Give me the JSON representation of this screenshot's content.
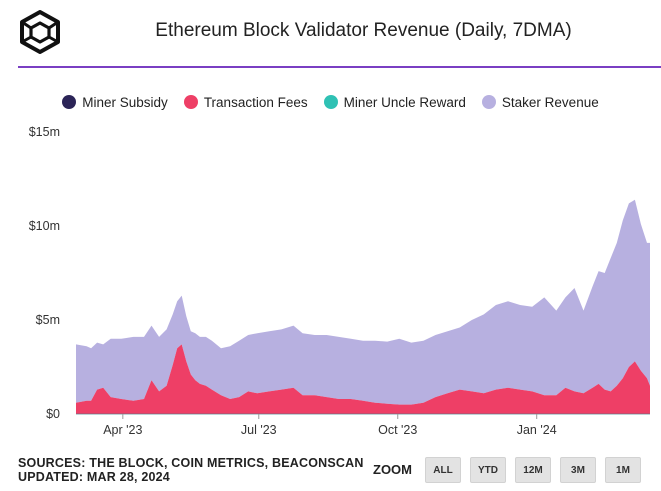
{
  "header": {
    "title": "Ethereum Block Validator Revenue (Daily, 7DMA)",
    "logo_icon": "cube-logo-icon"
  },
  "footer": {
    "sources": "SOURCES: THE BLOCK, COIN METRICS, BEACONSCAN",
    "updated": "UPDATED: MAR 28, 2024",
    "zoom_label": "ZOOM",
    "zoom_buttons": [
      "ALL",
      "YTD",
      "12M",
      "3M",
      "1M"
    ]
  },
  "colors": {
    "accent_rule": "#7a3fc3",
    "miner_subsidy": "#2b2457",
    "transaction_fees": "#ee3f66",
    "miner_uncle_reward": "#2fc1b4",
    "staker_revenue": "#b7b0e0"
  },
  "chart_data": {
    "type": "area",
    "stacked": true,
    "title": "Ethereum Block Validator Revenue (Daily, 7DMA)",
    "xlabel": "",
    "ylabel": "",
    "ylim": [
      0,
      15
    ],
    "y_ticks": [
      0,
      5,
      10,
      15
    ],
    "y_tick_labels": [
      "$0",
      "$5m",
      "$10m",
      "$15m"
    ],
    "x_range": [
      0,
      380
    ],
    "x_ticks": [
      {
        "label": "Apr '23",
        "day": 31
      },
      {
        "label": "Jul '23",
        "day": 121
      },
      {
        "label": "Oct '23",
        "day": 213
      },
      {
        "label": "Jan '24",
        "day": 305
      }
    ],
    "grid": false,
    "legend_position": "top",
    "series": [
      {
        "name": "Miner Subsidy",
        "color": "#2b2457",
        "x": [
          0,
          380
        ],
        "values": [
          0,
          0
        ]
      },
      {
        "name": "Miner Uncle Reward",
        "color": "#2fc1b4",
        "x": [
          0,
          380
        ],
        "values": [
          0,
          0
        ]
      },
      {
        "name": "Transaction Fees",
        "color": "#ee3f66",
        "x": [
          0,
          7,
          10,
          14,
          18,
          23,
          30,
          38,
          45,
          50,
          55,
          60,
          64,
          67,
          70,
          73,
          76,
          79,
          82,
          86,
          90,
          96,
          102,
          108,
          114,
          120,
          128,
          136,
          144,
          150,
          158,
          166,
          174,
          182,
          190,
          198,
          206,
          214,
          222,
          230,
          238,
          246,
          254,
          262,
          270,
          278,
          286,
          294,
          302,
          310,
          318,
          324,
          330,
          336,
          342,
          346,
          350,
          354,
          358,
          362,
          366,
          370,
          374,
          378,
          380
        ],
        "values": [
          0.6,
          0.7,
          0.7,
          1.3,
          1.4,
          0.9,
          0.8,
          0.7,
          0.8,
          1.8,
          1.2,
          1.5,
          2.6,
          3.5,
          3.7,
          2.8,
          2.1,
          1.8,
          1.6,
          1.5,
          1.3,
          1.0,
          0.8,
          0.9,
          1.2,
          1.1,
          1.2,
          1.3,
          1.4,
          1.0,
          1.0,
          0.9,
          0.8,
          0.8,
          0.7,
          0.6,
          0.55,
          0.5,
          0.5,
          0.6,
          0.9,
          1.1,
          1.3,
          1.2,
          1.1,
          1.3,
          1.4,
          1.3,
          1.2,
          1.0,
          1.0,
          1.4,
          1.2,
          1.1,
          1.4,
          1.6,
          1.3,
          1.2,
          1.5,
          1.9,
          2.5,
          2.8,
          2.3,
          1.9,
          1.5
        ]
      },
      {
        "name": "Staker Revenue",
        "color": "#b7b0e0",
        "x": [
          0,
          7,
          10,
          14,
          18,
          23,
          30,
          38,
          45,
          50,
          55,
          60,
          64,
          67,
          70,
          73,
          76,
          79,
          82,
          86,
          90,
          96,
          102,
          108,
          114,
          120,
          128,
          136,
          144,
          150,
          158,
          166,
          174,
          182,
          190,
          198,
          206,
          214,
          222,
          230,
          238,
          246,
          254,
          262,
          270,
          278,
          286,
          294,
          302,
          310,
          318,
          324,
          330,
          336,
          342,
          346,
          350,
          354,
          358,
          362,
          366,
          370,
          374,
          378,
          380
        ],
        "values": [
          3.1,
          2.9,
          2.8,
          2.5,
          2.3,
          3.1,
          3.2,
          3.4,
          3.3,
          2.9,
          2.9,
          3.0,
          2.7,
          2.5,
          2.6,
          2.4,
          2.3,
          2.5,
          2.5,
          2.6,
          2.6,
          2.5,
          2.8,
          3.0,
          3.0,
          3.2,
          3.2,
          3.2,
          3.3,
          3.3,
          3.2,
          3.3,
          3.3,
          3.2,
          3.2,
          3.3,
          3.3,
          3.5,
          3.3,
          3.3,
          3.3,
          3.3,
          3.3,
          3.8,
          4.2,
          4.5,
          4.6,
          4.5,
          4.5,
          5.2,
          4.5,
          4.8,
          5.5,
          4.4,
          5.4,
          6.0,
          6.2,
          7.1,
          7.6,
          8.4,
          8.7,
          8.6,
          7.8,
          7.2,
          7.6
        ]
      }
    ]
  }
}
